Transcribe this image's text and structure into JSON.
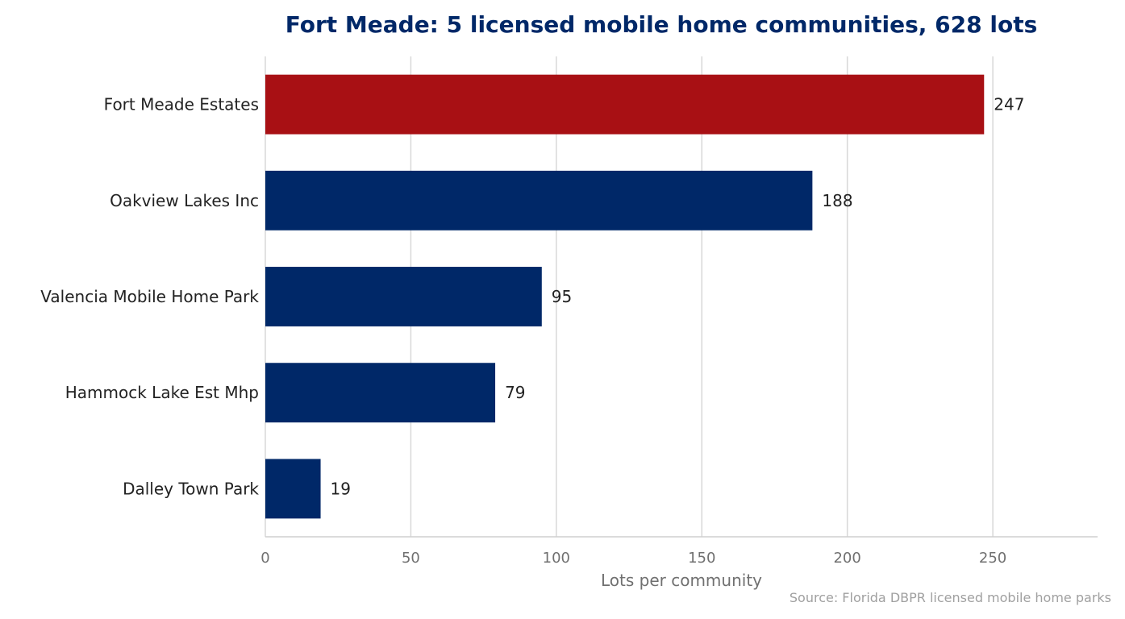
{
  "chart_data": {
    "type": "bar",
    "orientation": "horizontal",
    "title": "Fort Meade: 5 licensed mobile home communities, 628 lots",
    "xlabel": "Lots per community",
    "ylabel": "",
    "source": "Source: Florida DBPR licensed mobile home parks",
    "categories": [
      "Fort Meade Estates",
      "Oakview Lakes Inc",
      "Valencia Mobile Home Park",
      "Hammock Lake Est Mhp",
      "Dalley Town Park"
    ],
    "values": [
      247,
      188,
      95,
      79,
      19
    ],
    "value_labels": [
      "247",
      "188",
      "95",
      "79",
      "19"
    ],
    "xlim": [
      0,
      286
    ],
    "xticks": [
      0,
      50,
      100,
      150,
      200,
      250
    ],
    "grid": "vertical",
    "colors": {
      "highlight": "#a81014",
      "default": "#002868",
      "title": "#002868"
    },
    "highlight_index": 0
  }
}
